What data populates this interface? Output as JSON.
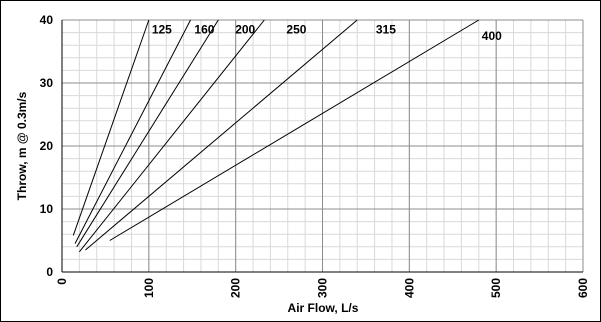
{
  "chart_data": {
    "type": "line",
    "title": "",
    "xlabel": "Air Flow, L/s",
    "ylabel": "Throw, m @ 0.3m/s",
    "xlim": [
      0,
      600
    ],
    "ylim": [
      0,
      40
    ],
    "x_ticks": [
      "0",
      "100",
      "200",
      "300",
      "400",
      "500",
      "600"
    ],
    "y_ticks": [
      "0",
      "10",
      "20",
      "30",
      "40"
    ],
    "x_minor_step": 20,
    "y_minor_step": 2,
    "grid": true,
    "series": [
      {
        "name": "125",
        "x": [
          13,
          100
        ],
        "y": [
          5.8,
          40
        ],
        "label_at": [
          115,
          38.5
        ]
      },
      {
        "name": "160",
        "x": [
          15,
          148
        ],
        "y": [
          4.5,
          40
        ],
        "label_at": [
          164,
          38.5
        ]
      },
      {
        "name": "200",
        "x": [
          17,
          180
        ],
        "y": [
          4.0,
          40
        ],
        "label_at": [
          211,
          38.5
        ]
      },
      {
        "name": "250",
        "x": [
          20,
          233
        ],
        "y": [
          3.2,
          40
        ],
        "label_at": [
          270,
          38.5
        ]
      },
      {
        "name": "315",
        "x": [
          27,
          340
        ],
        "y": [
          3.5,
          40
        ],
        "label_at": [
          373,
          38.5
        ]
      },
      {
        "name": "400",
        "x": [
          55,
          480
        ],
        "y": [
          5.0,
          40
        ],
        "label_at": [
          495,
          37.5
        ]
      }
    ]
  }
}
